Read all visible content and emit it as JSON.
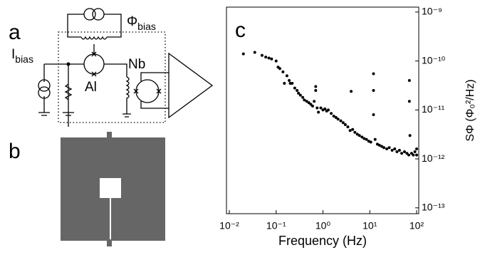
{
  "panels": {
    "a": {
      "label": "a",
      "flux_bias": {
        "symbol": "Φ",
        "subscript": "bias"
      },
      "current_bias": {
        "symbol": "I",
        "subscript": "bias"
      },
      "junction_1": "Al",
      "junction_2": "Nb"
    },
    "b": {
      "label": "b"
    },
    "c": {
      "label": "c"
    }
  },
  "chart_data": {
    "type": "scatter",
    "xlabel": "Frequency (Hz)",
    "ylabel": "SΦ (Φ₀²/Hz)",
    "xscale": "log",
    "yscale": "log",
    "yaxis_side": "right",
    "color": "#000000",
    "xlim": [
      0.0087,
      111
    ],
    "ylim": [
      7.6e-14,
      1.26e-09
    ],
    "xticks": [
      {
        "value": 0.01,
        "label": "10⁻²"
      },
      {
        "value": 0.1,
        "label": "10⁻¹"
      },
      {
        "value": 1,
        "label": "10⁰"
      },
      {
        "value": 10,
        "label": "10¹"
      },
      {
        "value": 100,
        "label": "10²"
      }
    ],
    "yticks": [
      {
        "value": 1e-13,
        "label": "10⁻¹³"
      },
      {
        "value": 1e-12,
        "label": "10⁻¹²"
      },
      {
        "value": 1e-11,
        "label": "10⁻¹¹"
      },
      {
        "value": 1e-10,
        "label": "10⁻¹⁰"
      },
      {
        "value": 1e-09,
        "label": "10⁻⁹"
      }
    ],
    "x": [
      0.02,
      0.035,
      0.05,
      0.06,
      0.07,
      0.08,
      0.1,
      0.11,
      0.12,
      0.14,
      0.15,
      0.17,
      0.19,
      0.2,
      0.22,
      0.25,
      0.28,
      0.3,
      0.33,
      0.37,
      0.4,
      0.45,
      0.5,
      0.55,
      0.6,
      0.65,
      0.7,
      0.7,
      0.75,
      0.8,
      0.9,
      1,
      1.1,
      1.2,
      1.3,
      1.5,
      1.7,
      1.9,
      2.1,
      2.4,
      2.7,
      3,
      3.4,
      3.8,
      4,
      4.3,
      4.8,
      5.4,
      6,
      6.8,
      7.6,
      8.5,
      9.5,
      10.5,
      12,
      12,
      12,
      13,
      14.5,
      16,
      18,
      20,
      23,
      26,
      30,
      34,
      38,
      43,
      48,
      55,
      62,
      68,
      70,
      70,
      72,
      78,
      85,
      92,
      100,
      100
    ],
    "y": [
      1.4e-10,
      1.5e-10,
      1.3e-10,
      1.2e-10,
      1.15e-10,
      1.1e-10,
      1e-10,
      7.5e-11,
      7e-11,
      6e-11,
      3.5e-11,
      5e-11,
      4e-11,
      3.5e-11,
      3.5e-11,
      2.8e-11,
      2.5e-11,
      2.2e-11,
      2e-11,
      1.8e-11,
      1.6e-11,
      1.5e-11,
      1.4e-11,
      1.3e-11,
      1.2e-11,
      1.5e-11,
      3e-11,
      2.5e-11,
      1.1e-11,
      9e-12,
      1.1e-11,
      1e-11,
      1.05e-11,
      9.5e-12,
      1e-11,
      8.5e-12,
      7.5e-12,
      7e-12,
      6.5e-12,
      6e-12,
      5.5e-12,
      5e-12,
      4.5e-12,
      3.8e-12,
      2.4e-11,
      4e-12,
      3.5e-12,
      3.2e-12,
      3e-12,
      2.8e-12,
      2.6e-12,
      2.5e-12,
      2.3e-12,
      2.2e-12,
      5.5e-11,
      2.5e-11,
      8e-12,
      2.5e-12,
      2e-12,
      1.9e-12,
      1.8e-12,
      1.7e-12,
      1.6e-12,
      1.7e-12,
      1.5e-12,
      1.6e-12,
      1.4e-12,
      1.5e-12,
      1.3e-12,
      1.4e-12,
      1.3e-12,
      1.2e-12,
      4e-11,
      1.5e-11,
      3e-12,
      1.3e-12,
      1.2e-12,
      1.4e-12,
      1.2e-12,
      1.6e-12
    ]
  }
}
